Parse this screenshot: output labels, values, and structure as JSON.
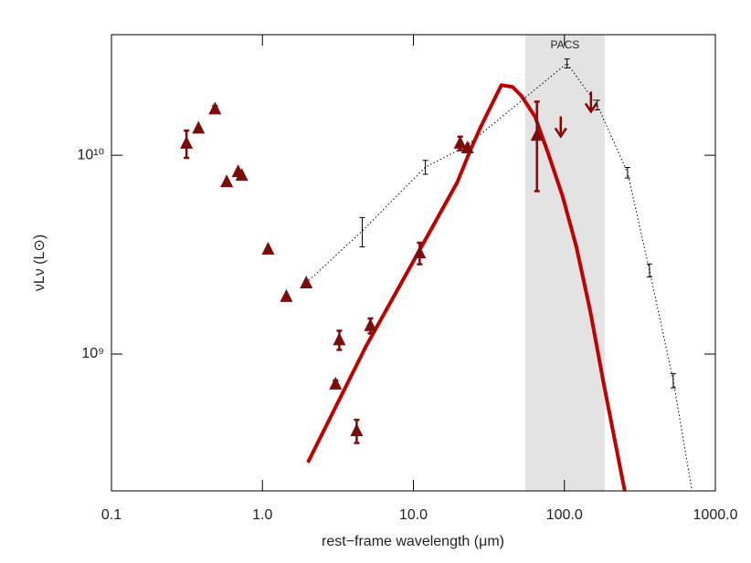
{
  "chart_data": {
    "type": "scatter",
    "x_label": "rest−frame wavelength (μm)",
    "y_label": "νLν (L⊙)",
    "xscale": "log",
    "yscale": "log",
    "xlim": [
      0.1,
      1000
    ],
    "ylim": [
      205000000,
      40400000000
    ],
    "xticks": [
      0.1,
      {
        "value": 1,
        "label": "1.0"
      },
      {
        "value": 10,
        "label": "10.0"
      },
      {
        "value": 100,
        "label": "100.0"
      },
      {
        "value": 1000,
        "label": "1000.0"
      }
    ],
    "yticks": [
      {
        "value": 1000000000,
        "label": "10⁹"
      },
      {
        "value": 10000000000,
        "label": "10¹⁰"
      }
    ],
    "shaded_region": {
      "label": "PACS",
      "xrange": [
        55,
        185
      ],
      "color": "#e3e3e3"
    },
    "series": [
      {
        "style": "dotted",
        "color": "#000000",
        "x": [
          1.95,
          4.58,
          12.0,
          22.3,
          104,
          165,
          262,
          366,
          526,
          700
        ],
        "values": [
          2280000000,
          4160000000,
          8720000000,
          11100000000,
          29000000000,
          17900000000,
          8180000000,
          2640000000,
          736000000,
          205000000
        ],
        "errors": [
          null,
          700000000,
          700000000,
          null,
          1500000000,
          1000000000,
          500000000,
          200000000,
          60000000,
          null
        ]
      },
      {
        "style": "line",
        "color": "#c00000",
        "x": [
          2.0,
          4.84,
          9.73,
          19.5,
          24.1,
          27.7,
          38.2,
          45.2,
          51.9,
          64.0,
          78.9,
          97.3,
          120,
          148,
          182,
          251
        ],
        "values": [
          285000000,
          1090000000,
          2820000000,
          7290000000,
          10800000000,
          13700000000,
          22500000000,
          22100000000,
          19900000000,
          15600000000,
          10000000000,
          6220000000,
          3470000000,
          1660000000,
          713000000,
          205000000
        ]
      },
      {
        "style": "triangle",
        "color": "#7b0c0c",
        "x": [
          0.314,
          0.377,
          0.485,
          0.58,
          0.69,
          0.73,
          1.09,
          1.44,
          1.95,
          3.05,
          3.23,
          4.21,
          5.19,
          11.0,
          20.4,
          22.8,
          65.8
        ],
        "values": [
          11500000000,
          13700000000,
          17100000000,
          7360000000,
          8270000000,
          7930000000,
          3370000000,
          1950000000,
          2280000000,
          707000000,
          1180000000,
          412000000,
          1390000000,
          3230000000,
          11500000000,
          10900000000,
          12600000000
        ],
        "errors": [
          1800000000,
          null,
          600000000,
          null,
          null,
          null,
          null,
          null,
          null,
          30000000,
          130000000,
          55000000,
          120000000,
          400000000,
          900000000,
          null,
          6000000000
        ]
      },
      {
        "style": "arrow",
        "color": "#8b0000",
        "x": [
          94.6,
          150
        ],
        "values": [
          15700000000,
          20900000000
        ]
      }
    ]
  }
}
